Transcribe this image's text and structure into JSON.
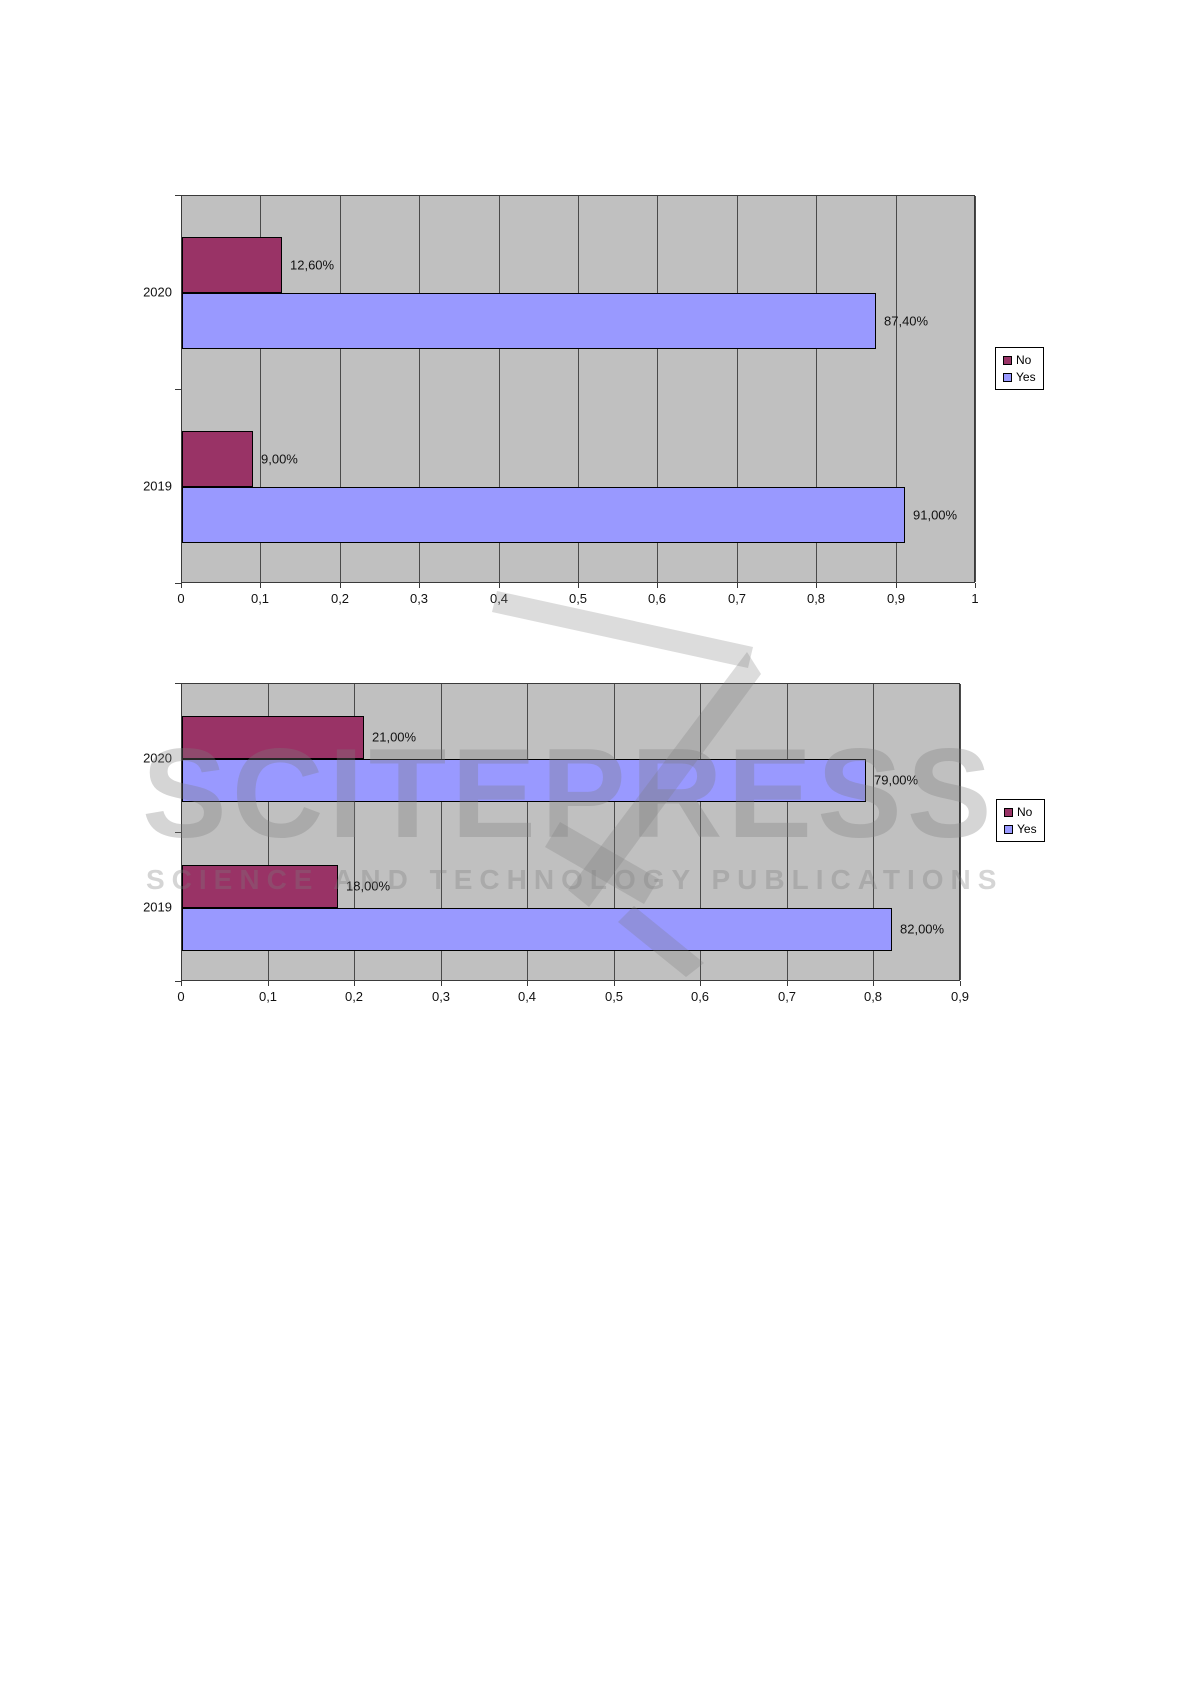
{
  "colors": {
    "no_series": "#993366",
    "yes_series": "#9999ff",
    "plot_background": "#c0c0c0",
    "gridline": "#4a4a4a",
    "bar_border": "#000000",
    "text": "#111111"
  },
  "watermark": {
    "title": "SCITEPRESS",
    "subtitle": "SCIENCE AND TECHNOLOGY PUBLICATIONS"
  },
  "chart_data": [
    {
      "type": "bar",
      "orientation": "horizontal",
      "title": "",
      "categories": [
        "2020",
        "2019"
      ],
      "series": [
        {
          "name": "No",
          "color": "#993366",
          "values": [
            0.126,
            0.09
          ],
          "labels": [
            "12,60%",
            "9,00%"
          ]
        },
        {
          "name": "Yes",
          "color": "#9999ff",
          "values": [
            0.874,
            0.91
          ],
          "labels": [
            "87,40%",
            "91,00%"
          ]
        }
      ],
      "xlim": [
        0,
        1
      ],
      "x_ticks": [
        "0",
        "0,1",
        "0,2",
        "0,3",
        "0,4",
        "0,5",
        "0,6",
        "0,7",
        "0,8",
        "0,9",
        "1"
      ],
      "grid": true,
      "legend_position": "right",
      "legend_items": [
        "No",
        "Yes"
      ]
    },
    {
      "type": "bar",
      "orientation": "horizontal",
      "title": "",
      "categories": [
        "2020",
        "2019"
      ],
      "series": [
        {
          "name": "No",
          "color": "#993366",
          "values": [
            0.21,
            0.18
          ],
          "labels": [
            "21,00%",
            "18,00%"
          ]
        },
        {
          "name": "Yes",
          "color": "#9999ff",
          "values": [
            0.79,
            0.82
          ],
          "labels": [
            "79,00%",
            "82,00%"
          ]
        }
      ],
      "xlim": [
        0,
        0.9
      ],
      "x_ticks": [
        "0",
        "0,1",
        "0,2",
        "0,3",
        "0,4",
        "0,5",
        "0,6",
        "0,7",
        "0,8",
        "0,9"
      ],
      "grid": true,
      "legend_position": "right",
      "legend_items": [
        "No",
        "Yes"
      ]
    }
  ]
}
